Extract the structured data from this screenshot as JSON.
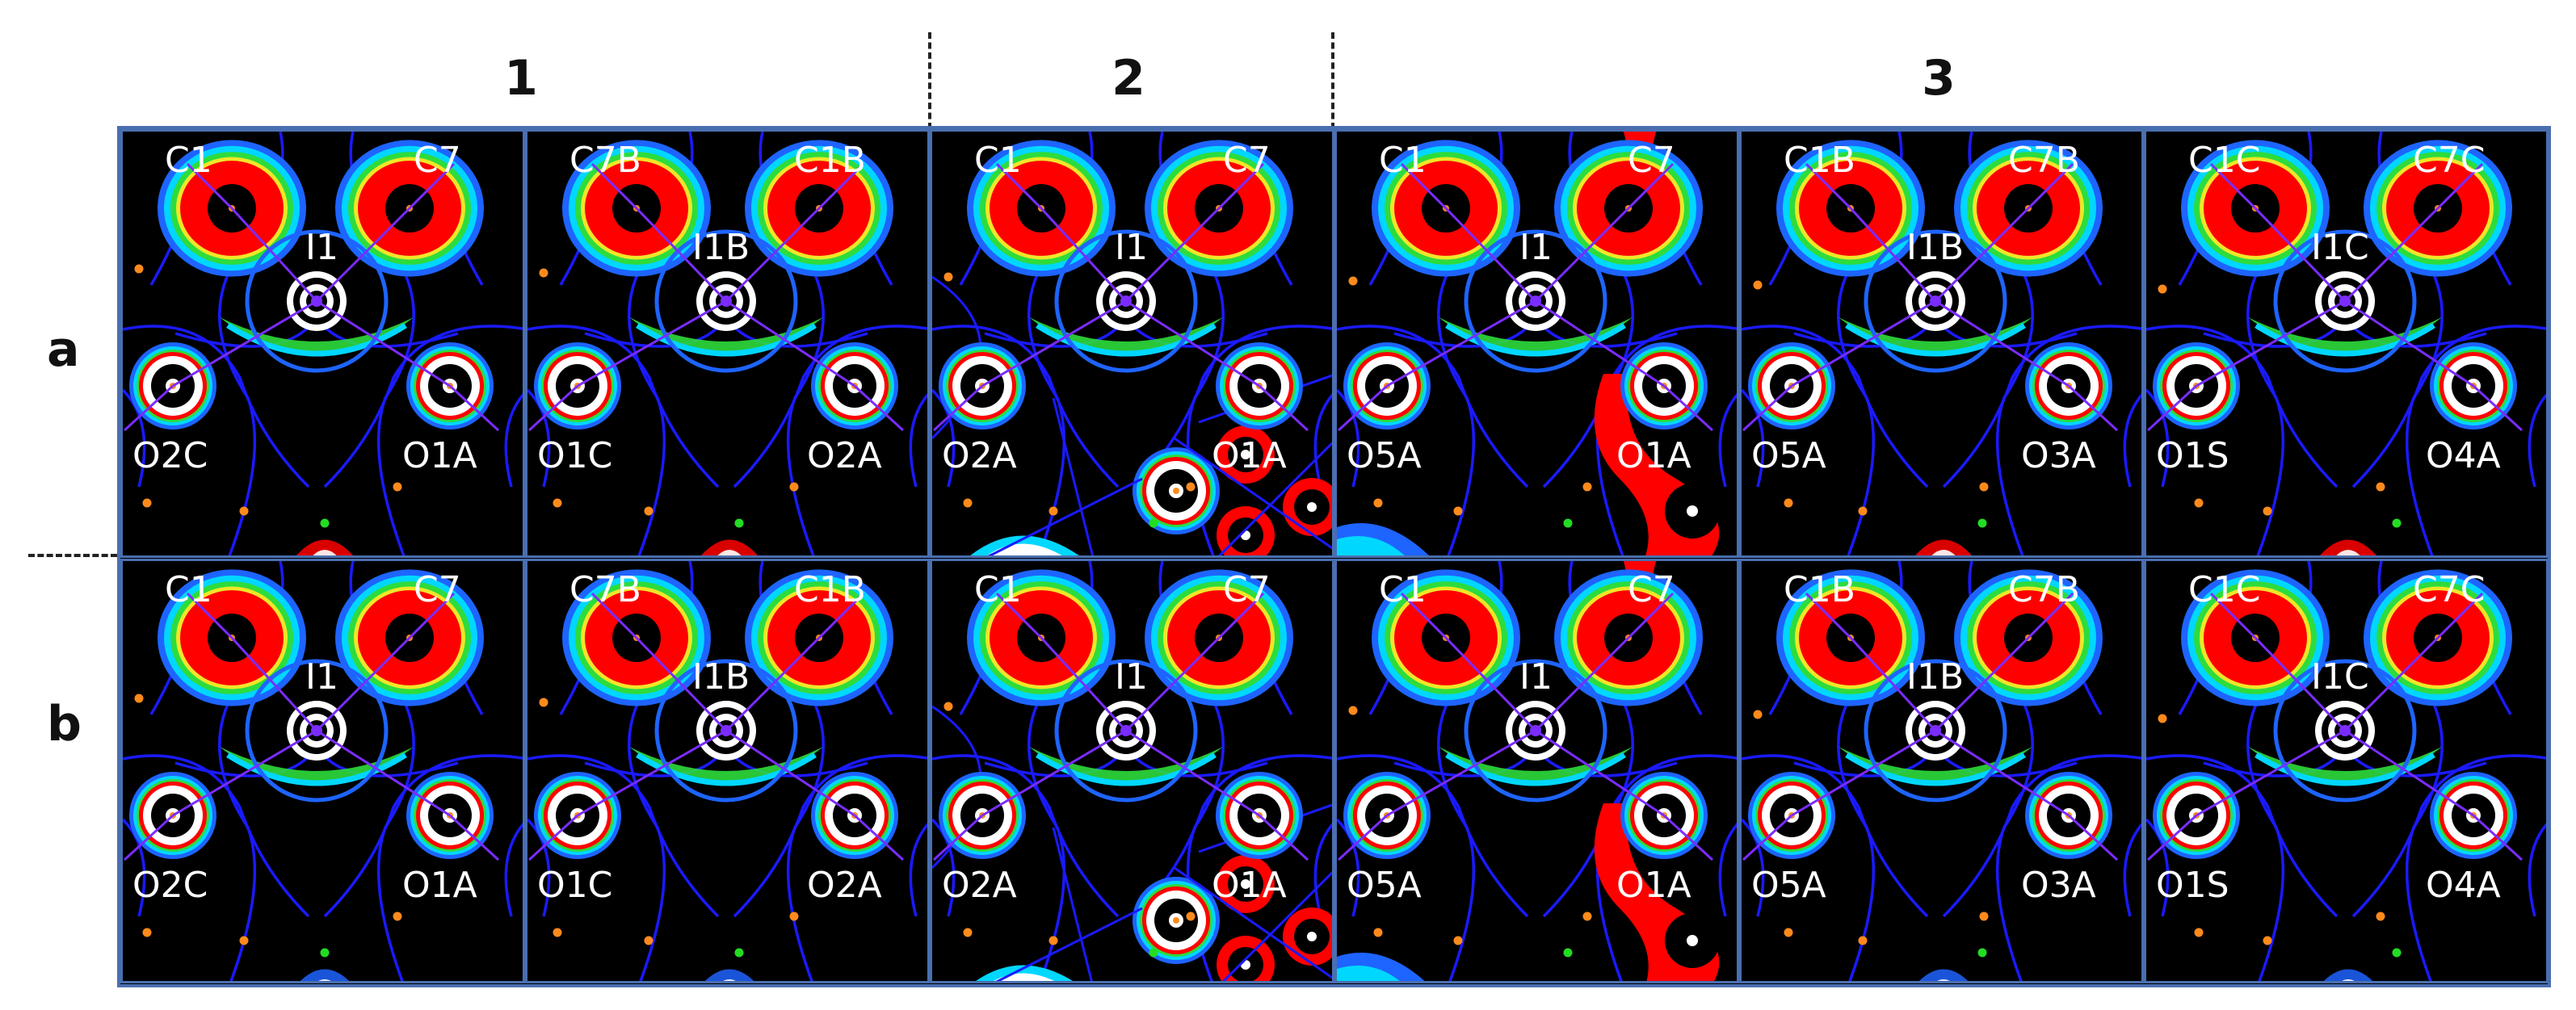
{
  "compound_labels": [
    "1",
    "2",
    "3"
  ],
  "row_labels": [
    "a",
    "b"
  ],
  "colors": {
    "background": "#000000",
    "contour_outer": "#1e64ff",
    "contour_cyan": "#00d7ff",
    "contour_green": "#2ddc3c",
    "contour_yellow": "#f0e628",
    "contour_red": "#ff0000",
    "contour_white": "#ffffff",
    "bond_path": "#7a2cff",
    "gradient_line": "#1a1aff",
    "critical_point_orange": "#ff8a1c",
    "critical_point_green": "#22dd22",
    "panel_border": "#4a6fb0"
  },
  "panels": [
    {
      "compound": "1",
      "labels": {
        "tl": "C1",
        "tr": "C7",
        "center": "I1",
        "bl": "O2C",
        "br": "O1A"
      },
      "variant": "plain"
    },
    {
      "compound": "1",
      "labels": {
        "tl": "C7B",
        "tr": "C1B",
        "center": "I1B",
        "bl": "O1C",
        "br": "O2A"
      },
      "variant": "plain"
    },
    {
      "compound": "2",
      "labels": {
        "tl": "C1",
        "tr": "C7",
        "center": "I1",
        "bl": "O2A",
        "br": "O1A"
      },
      "variant": "busy"
    },
    {
      "compound": "3",
      "labels": {
        "tl": "C1",
        "tr": "C7",
        "center": "I1",
        "bl": "O5A",
        "br": "O1A"
      },
      "variant": "chain"
    },
    {
      "compound": "3",
      "labels": {
        "tl": "C1B",
        "tr": "C7B",
        "center": "I1B",
        "bl": "O5A",
        "br": "O3A"
      },
      "variant": "plain"
    },
    {
      "compound": "3",
      "labels": {
        "tl": "C1C",
        "tr": "C7C",
        "center": "I1C",
        "bl": "O1S",
        "br": "O4A"
      },
      "variant": "plain"
    }
  ]
}
